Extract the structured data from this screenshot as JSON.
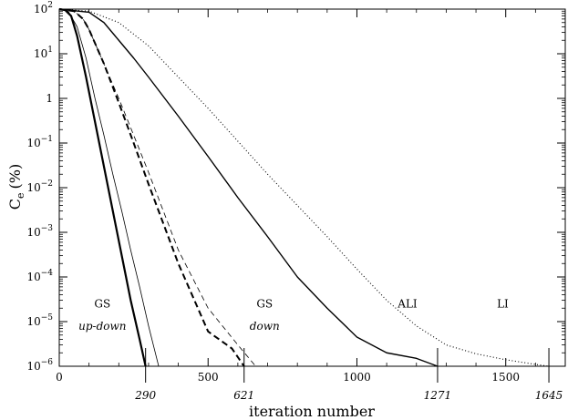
{
  "chart_data": {
    "type": "line",
    "xlabel": "iteration number",
    "ylabel": "C",
    "ylabel_sub": "e",
    "ylabel_unit": "(%)",
    "scale": {
      "y": "log"
    },
    "xlim": [
      0,
      1700
    ],
    "ylim_exp": [
      -6,
      2
    ],
    "x_ticks": [
      {
        "value": 0,
        "label": "0"
      },
      {
        "value": 500,
        "label": "500"
      },
      {
        "value": 1000,
        "label": "1000"
      },
      {
        "value": 1500,
        "label": "1500"
      }
    ],
    "y_ticks": [
      {
        "exp": 2,
        "label": "10",
        "sup": "2"
      },
      {
        "exp": 1,
        "label": "10",
        "sup": "1"
      },
      {
        "exp": 0,
        "label": "1",
        "sup": ""
      },
      {
        "exp": -1,
        "label": "10",
        "sup": "−1"
      },
      {
        "exp": -2,
        "label": "10",
        "sup": "−2"
      },
      {
        "exp": -3,
        "label": "10",
        "sup": "−3"
      },
      {
        "exp": -4,
        "label": "10",
        "sup": "−4"
      },
      {
        "exp": -5,
        "label": "10",
        "sup": "−5"
      },
      {
        "exp": -6,
        "label": "10",
        "sup": "−6"
      }
    ],
    "marked_iterations": [
      {
        "value": 290,
        "label": "290"
      },
      {
        "value": 621,
        "label": "621"
      },
      {
        "value": 1271,
        "label": "1271"
      },
      {
        "value": 1645,
        "label": "1645"
      }
    ],
    "series": [
      {
        "style": "solid-thick",
        "points": [
          [
            0,
            100
          ],
          [
            20,
            95
          ],
          [
            40,
            70
          ],
          [
            60,
            25
          ],
          [
            90,
            3
          ],
          [
            120,
            0.3
          ],
          [
            150,
            0.03
          ],
          [
            180,
            0.003
          ],
          [
            210,
            0.0003
          ],
          [
            240,
            3e-05
          ],
          [
            270,
            4e-06
          ],
          [
            290,
            1e-06
          ]
        ]
      },
      {
        "style": "solid-thin",
        "points": [
          [
            0,
            100
          ],
          [
            30,
            90
          ],
          [
            60,
            40
          ],
          [
            90,
            8
          ],
          [
            120,
            1
          ],
          [
            150,
            0.15
          ],
          [
            180,
            0.02
          ],
          [
            210,
            0.003
          ],
          [
            240,
            0.0004
          ],
          [
            270,
            6e-05
          ],
          [
            300,
            8e-06
          ],
          [
            334,
            1e-06
          ]
        ]
      },
      {
        "style": "dashed-thick",
        "points": [
          [
            0,
            100
          ],
          [
            50,
            90
          ],
          [
            80,
            60
          ],
          [
            100,
            35
          ],
          [
            150,
            6
          ],
          [
            200,
            0.8
          ],
          [
            250,
            0.1
          ],
          [
            300,
            0.012
          ],
          [
            400,
            0.0002
          ],
          [
            500,
            6e-06
          ],
          [
            580,
            2.5e-06
          ],
          [
            621,
            1e-06
          ]
        ]
      },
      {
        "style": "dashed-thin",
        "points": [
          [
            0,
            100
          ],
          [
            50,
            90
          ],
          [
            80,
            60
          ],
          [
            100,
            35
          ],
          [
            150,
            6
          ],
          [
            200,
            1
          ],
          [
            250,
            0.15
          ],
          [
            300,
            0.022
          ],
          [
            400,
            0.0004
          ],
          [
            500,
            2e-05
          ],
          [
            600,
            3e-06
          ],
          [
            660,
            1e-06
          ]
        ]
      },
      {
        "style": "solid-medium",
        "points": [
          [
            0,
            100
          ],
          [
            100,
            85
          ],
          [
            150,
            50
          ],
          [
            200,
            20
          ],
          [
            250,
            8
          ],
          [
            300,
            3
          ],
          [
            400,
            0.4
          ],
          [
            500,
            0.05
          ],
          [
            600,
            0.006
          ],
          [
            700,
            0.0008
          ],
          [
            800,
            0.0001
          ],
          [
            900,
            2e-05
          ],
          [
            1000,
            4.5e-06
          ],
          [
            1100,
            2e-06
          ],
          [
            1200,
            1.5e-06
          ],
          [
            1271,
            1e-06
          ]
        ]
      },
      {
        "style": "dotted",
        "points": [
          [
            0,
            100
          ],
          [
            100,
            90
          ],
          [
            200,
            50
          ],
          [
            300,
            15
          ],
          [
            400,
            3
          ],
          [
            500,
            0.6
          ],
          [
            600,
            0.11
          ],
          [
            700,
            0.02
          ],
          [
            800,
            0.004
          ],
          [
            900,
            0.0008
          ],
          [
            1000,
            0.00015
          ],
          [
            1100,
            3e-05
          ],
          [
            1200,
            8e-06
          ],
          [
            1300,
            3e-06
          ],
          [
            1400,
            1.9e-06
          ],
          [
            1500,
            1.4e-06
          ],
          [
            1600,
            1.1e-06
          ],
          [
            1645,
            1e-06
          ]
        ]
      }
    ],
    "annotations": [
      {
        "text": "GS",
        "style": "normal",
        "x": 145,
        "exp": -4.6
      },
      {
        "text": "up-down",
        "style": "italic",
        "x": 145,
        "exp": -5.1
      },
      {
        "text": "GS",
        "style": "normal",
        "x": 690,
        "exp": -4.6
      },
      {
        "text": "down",
        "style": "italic",
        "x": 690,
        "exp": -5.1
      },
      {
        "text": "ALI",
        "style": "normal",
        "x": 1170,
        "exp": -4.6
      },
      {
        "text": "LI",
        "style": "normal",
        "x": 1490,
        "exp": -4.6
      }
    ]
  }
}
